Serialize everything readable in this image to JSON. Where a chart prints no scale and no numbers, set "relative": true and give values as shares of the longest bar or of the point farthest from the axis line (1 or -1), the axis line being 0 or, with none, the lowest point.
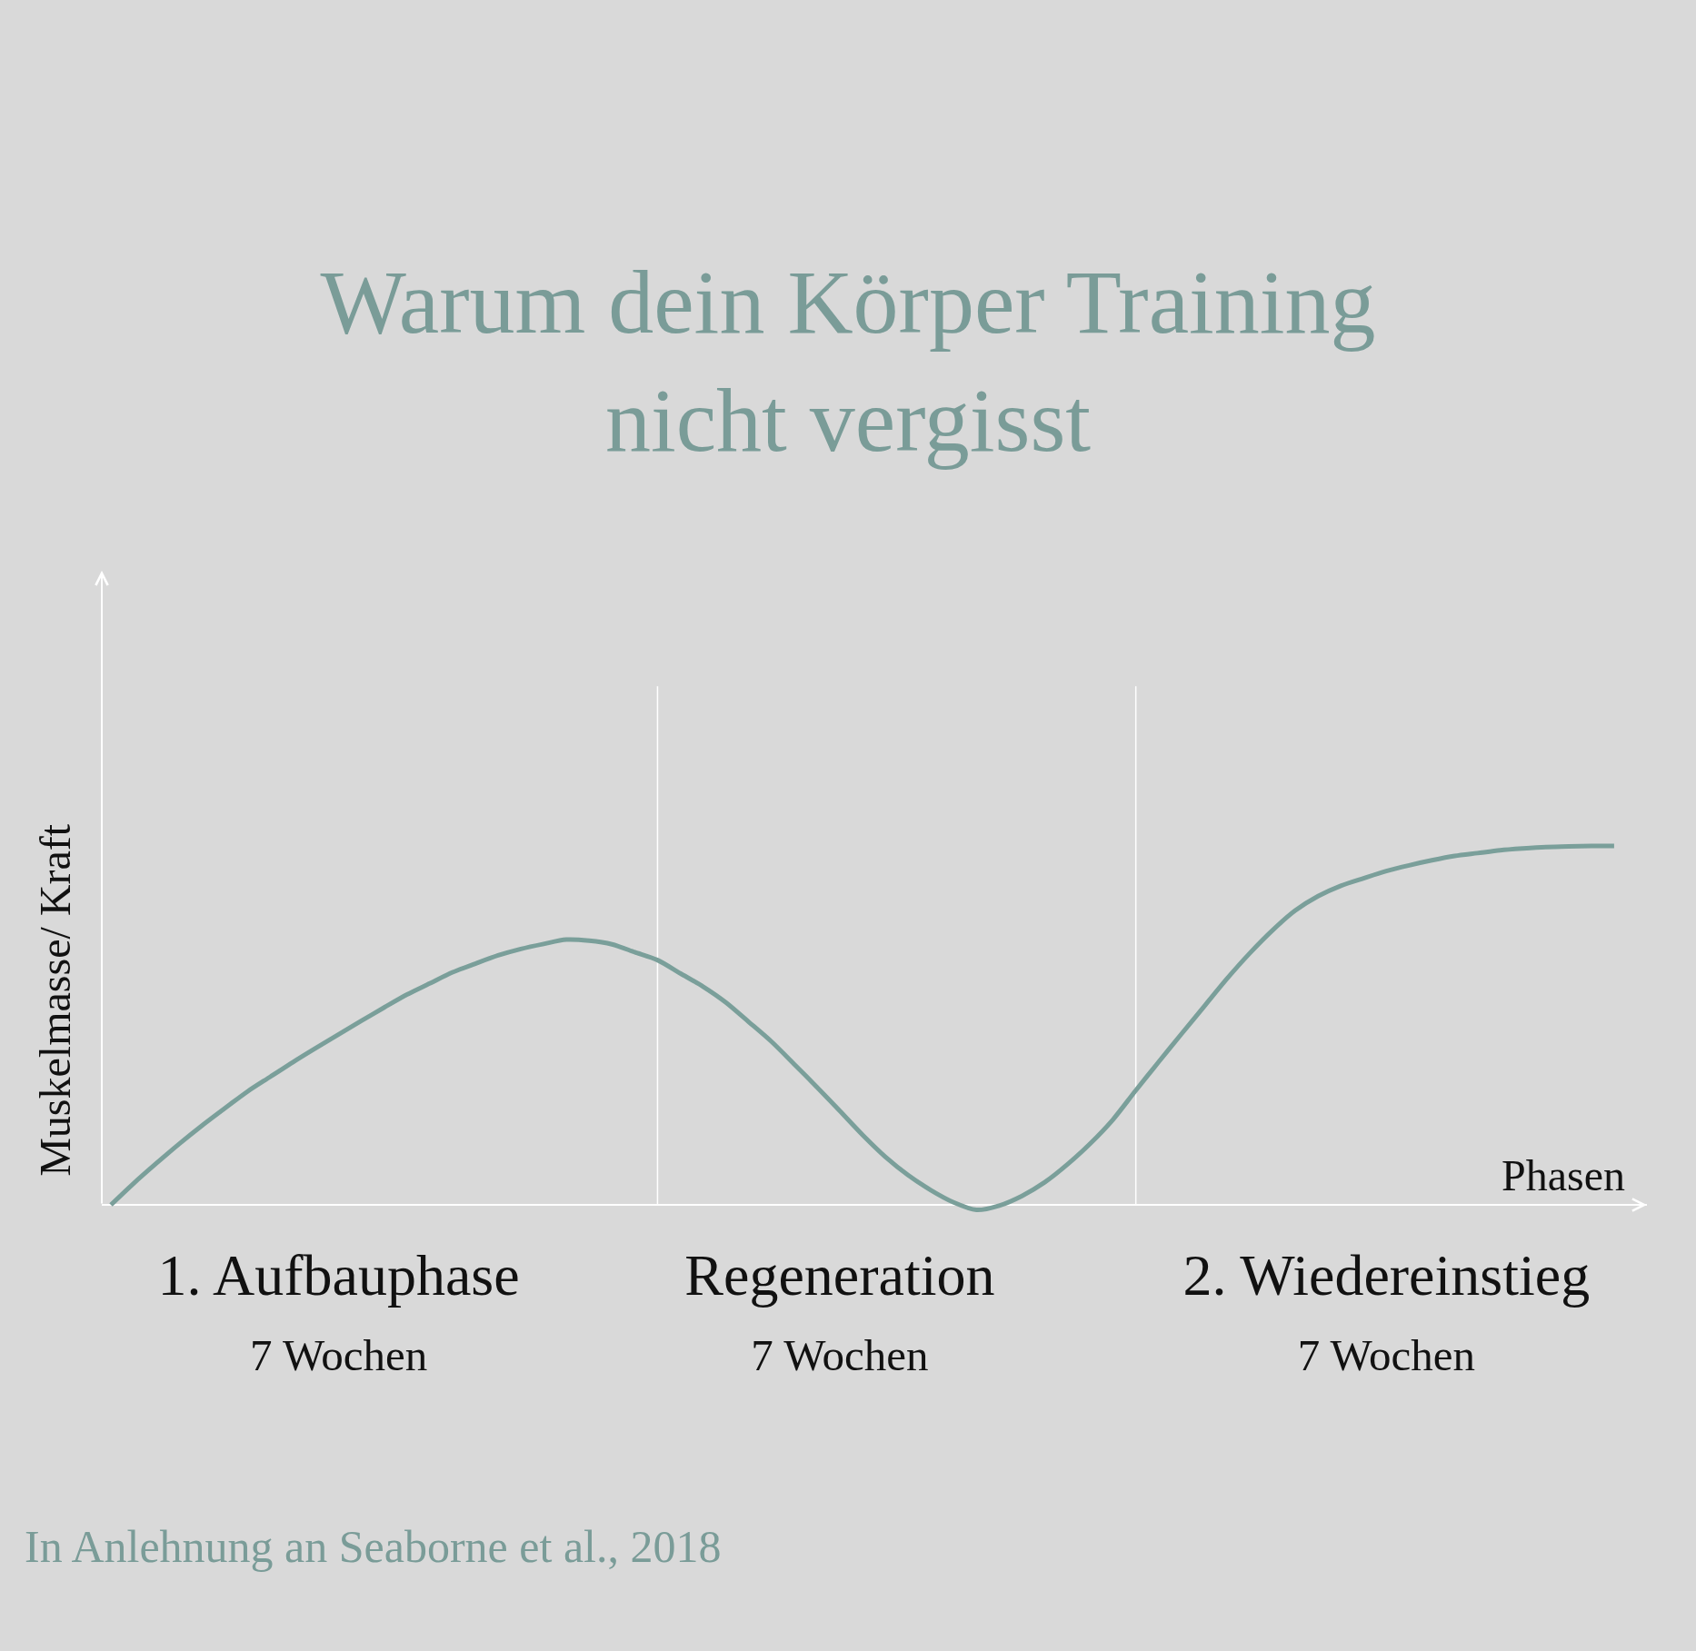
{
  "chart_data": {
    "type": "line",
    "title": "Warum dein Körper Training\nnicht vergisst",
    "xlabel": "Phasen",
    "ylabel": "Muskelmasse/ Kraft",
    "relative": true,
    "categories": [
      null,
      null,
      null,
      null,
      null,
      null,
      null,
      null,
      null,
      null,
      "1. Aufbauphase\n7 Wochen",
      null,
      null,
      null,
      null,
      null,
      null,
      null,
      null,
      null,
      null,
      null,
      null,
      null,
      null,
      null,
      null,
      null,
      null,
      null,
      null,
      null,
      "Regeneration\n7 Wochen",
      null,
      null,
      null,
      null,
      null,
      null,
      null,
      null,
      null,
      null,
      null,
      null,
      null,
      null,
      null,
      null,
      null,
      null,
      null,
      null,
      null,
      null,
      null,
      "2. Wiedereinstieg\n7 Wochen",
      null,
      null,
      null,
      null,
      null,
      null,
      null,
      null,
      null,
      null
    ],
    "series": [
      {
        "color": "#7a9f9a",
        "values": [
          0,
          0.06,
          0.116,
          0.17,
          0.221,
          0.269,
          0.316,
          0.357,
          0.398,
          0.437,
          0.475,
          0.513,
          0.55,
          0.586,
          0.617,
          0.648,
          0.672,
          0.695,
          0.713,
          0.727,
          0.739,
          0.736,
          0.726,
          0.704,
          0.682,
          0.645,
          0.608,
          0.564,
          0.51,
          0.455,
          0.392,
          0.328,
          0.262,
          0.195,
          0.134,
          0.083,
          0.041,
          0.007,
          -0.014,
          -0.002,
          0.025,
          0.063,
          0.113,
          0.171,
          0.238,
          0.319,
          0.398,
          0.476,
          0.553,
          0.63,
          0.701,
          0.765,
          0.82,
          0.86,
          0.889,
          0.91,
          0.93,
          0.946,
          0.96,
          0.972,
          0.98,
          0.988,
          0.993,
          0.997,
          0.999,
          1.0,
          1.0
        ]
      }
    ],
    "annotations": [
      "In Anlehnung an Seaborne et al., 2018"
    ],
    "line_style": "solid"
  }
}
